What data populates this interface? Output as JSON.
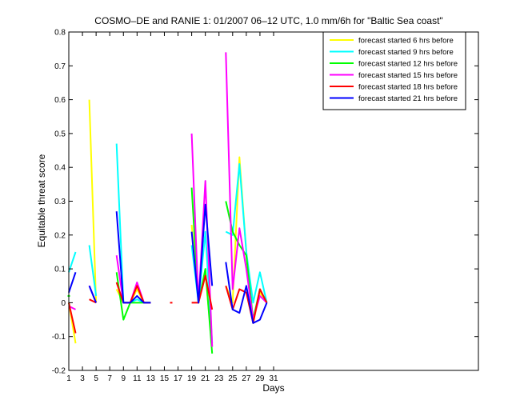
{
  "chart_data": {
    "type": "line",
    "title": "COSMO–DE and RANIE 1: 01/2007 06–12 UTC, 1.0 mm/6h for \"Baltic Sea coast\"",
    "xlabel": "Days",
    "ylabel": "Equitable threat score",
    "xlim": [
      1,
      61
    ],
    "ylim": [
      -0.2,
      0.8
    ],
    "xticks": [
      1,
      3,
      5,
      7,
      9,
      11,
      13,
      15,
      17,
      19,
      21,
      23,
      25,
      27,
      29,
      31
    ],
    "yticks": [
      -0.2,
      -0.1,
      0,
      0.1,
      0.2,
      0.3,
      0.4,
      0.5,
      0.6,
      0.7,
      0.8
    ],
    "grid": false,
    "legend_position": "top-right",
    "series": [
      {
        "name": "forecast started 6 hrs before",
        "color": "#ffff00",
        "values": [
          0.0,
          -0.12,
          null,
          0.6,
          0.0,
          null,
          null,
          0.04,
          0.0,
          0.0,
          0.04,
          0.0,
          0.0,
          null,
          null,
          null,
          null,
          null,
          0.23,
          0.0,
          0.09,
          -0.13,
          null,
          0.05,
          0.0,
          0.43,
          0.15,
          -0.06,
          0.03,
          0.0
        ]
      },
      {
        "name": "forecast started 9 hrs before",
        "color": "#00ffff",
        "values": [
          0.09,
          0.15,
          null,
          0.17,
          0.02,
          null,
          null,
          0.47,
          0.0,
          0.0,
          0.01,
          0.0,
          0.0,
          null,
          null,
          null,
          null,
          null,
          0.17,
          0.0,
          0.21,
          -0.12,
          null,
          0.21,
          0.2,
          0.41,
          0.15,
          0.0,
          0.09,
          0.0
        ]
      },
      {
        "name": "forecast started 12 hrs before",
        "color": "#00ff00",
        "values": [
          0.02,
          null,
          null,
          null,
          null,
          null,
          null,
          0.09,
          -0.05,
          0.0,
          0.0,
          0.0,
          0.0,
          null,
          null,
          null,
          null,
          null,
          0.34,
          0.0,
          0.1,
          -0.15,
          null,
          0.3,
          0.21,
          0.17,
          0.14,
          -0.05,
          0.04,
          0.0
        ]
      },
      {
        "name": "forecast started 15 hrs before",
        "color": "#ff00ff",
        "values": [
          -0.01,
          -0.02,
          null,
          0.05,
          0.0,
          null,
          null,
          0.14,
          0.0,
          0.0,
          0.06,
          0.0,
          0.0,
          null,
          null,
          null,
          null,
          null,
          0.5,
          0.0,
          0.36,
          -0.13,
          null,
          0.74,
          0.04,
          0.22,
          0.1,
          -0.05,
          0.02,
          0.0
        ]
      },
      {
        "name": "forecast started 18 hrs before",
        "color": "#ff0000",
        "values": [
          0.0,
          -0.09,
          null,
          0.01,
          0.0,
          null,
          null,
          0.06,
          0.0,
          0.0,
          0.05,
          0.0,
          0.0,
          null,
          null,
          0.0,
          null,
          null,
          0.0,
          0.0,
          0.08,
          -0.02,
          null,
          0.05,
          -0.02,
          0.04,
          0.03,
          -0.06,
          0.04,
          0.0
        ]
      },
      {
        "name": "forecast started 21 hrs before",
        "color": "#0000ff",
        "values": [
          0.03,
          0.09,
          null,
          0.05,
          0.0,
          null,
          null,
          0.27,
          0.0,
          0.0,
          0.02,
          0.0,
          0.0,
          null,
          null,
          null,
          null,
          null,
          0.21,
          0.0,
          0.29,
          0.05,
          null,
          0.12,
          -0.02,
          -0.03,
          0.05,
          -0.06,
          -0.05,
          0.0
        ]
      }
    ]
  }
}
